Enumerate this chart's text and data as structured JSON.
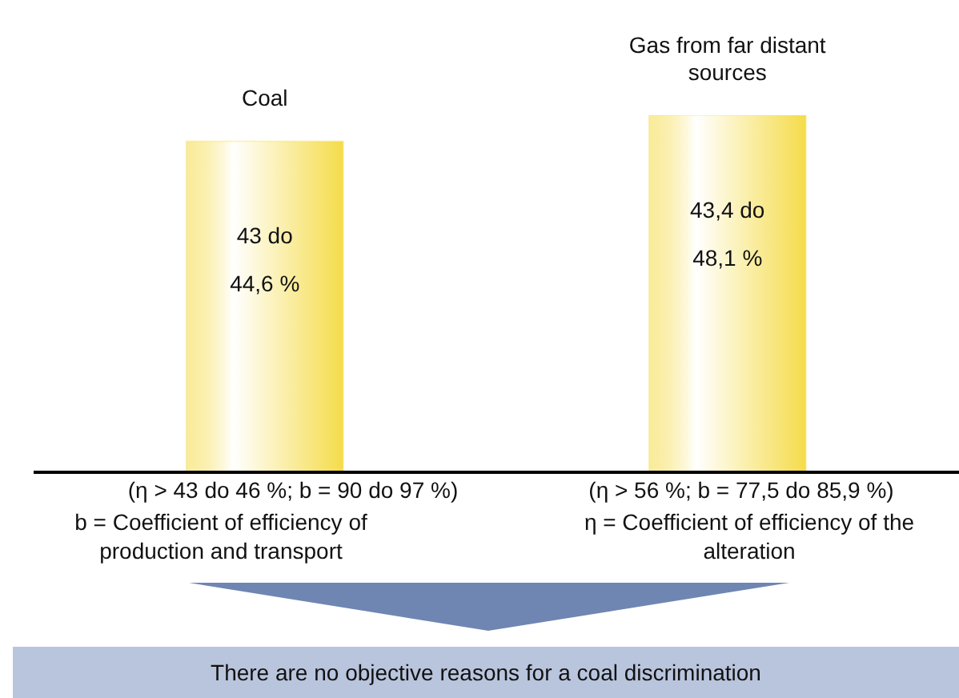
{
  "chart_data": {
    "type": "bar",
    "categories": [
      "Coal",
      "Gas from far distant sources"
    ],
    "values": [
      44.6,
      48.1
    ],
    "color": "#f5dc4a",
    "value_labels": [
      "43 do 44,6 %",
      "43,4 do 48,1 %"
    ],
    "annotations": [
      "(η > 43 do 46 %; b = 90 do 97 %)",
      "(η > 56 %; b = 77,5 do 85,9 %)",
      "b = Coefficient of efficiency of production and transport",
      "η = Coefficient of efficiency of the alteration",
      "There are no objective reasons for a coal discrimination"
    ]
  }
}
